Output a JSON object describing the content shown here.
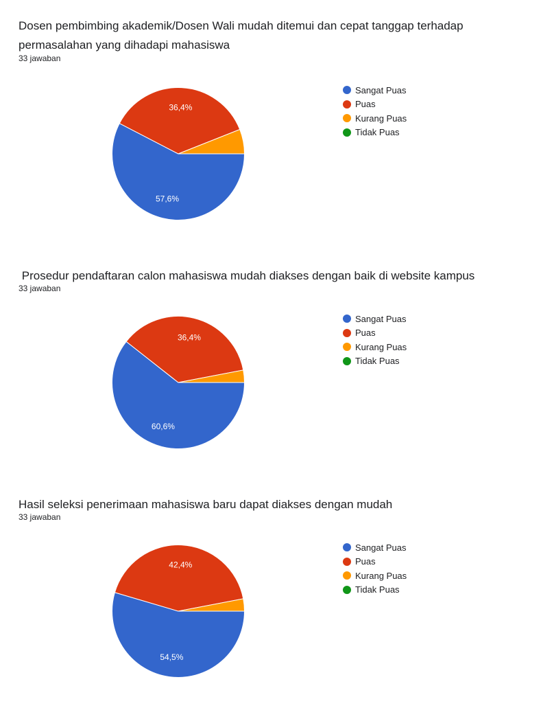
{
  "legend_labels": [
    "Sangat Puas",
    "Puas",
    "Kurang Puas",
    "Tidak Puas"
  ],
  "colors": {
    "sangat_puas": "#3366cc",
    "puas": "#dc3912",
    "kurang_puas": "#ff9900",
    "tidak_puas": "#109618"
  },
  "chart_data": [
    {
      "type": "pie",
      "title": "Dosen pembimbing akademik/Dosen Wali mudah ditemui dan cepat tanggap terhadap permasalahan yang dihadapi mahasiswa",
      "subtitle": "33 jawaban",
      "categories": [
        "Sangat Puas",
        "Puas",
        "Kurang Puas",
        "Tidak Puas"
      ],
      "values": [
        57.6,
        36.4,
        6.0,
        0
      ],
      "data_labels": [
        "57,6%",
        "36,4%",
        "",
        ""
      ],
      "legend_position": "right"
    },
    {
      "type": "pie",
      "title": " Prosedur pendaftaran calon mahasiswa mudah diakses dengan baik di website kampus",
      "subtitle": "33 jawaban",
      "categories": [
        "Sangat Puas",
        "Puas",
        "Kurang Puas",
        "Tidak Puas"
      ],
      "values": [
        60.6,
        36.4,
        3.0,
        0
      ],
      "data_labels": [
        "60,6%",
        "36,4%",
        "",
        ""
      ],
      "legend_position": "right"
    },
    {
      "type": "pie",
      "title": "Hasil seleksi penerimaan mahasiswa baru dapat diakses dengan mudah",
      "subtitle": "33 jawaban",
      "categories": [
        "Sangat Puas",
        "Puas",
        "Kurang Puas",
        "Tidak Puas"
      ],
      "values": [
        54.5,
        42.4,
        3.0,
        0
      ],
      "data_labels": [
        "54,5%",
        "42,4%",
        "",
        ""
      ],
      "legend_position": "right"
    }
  ]
}
